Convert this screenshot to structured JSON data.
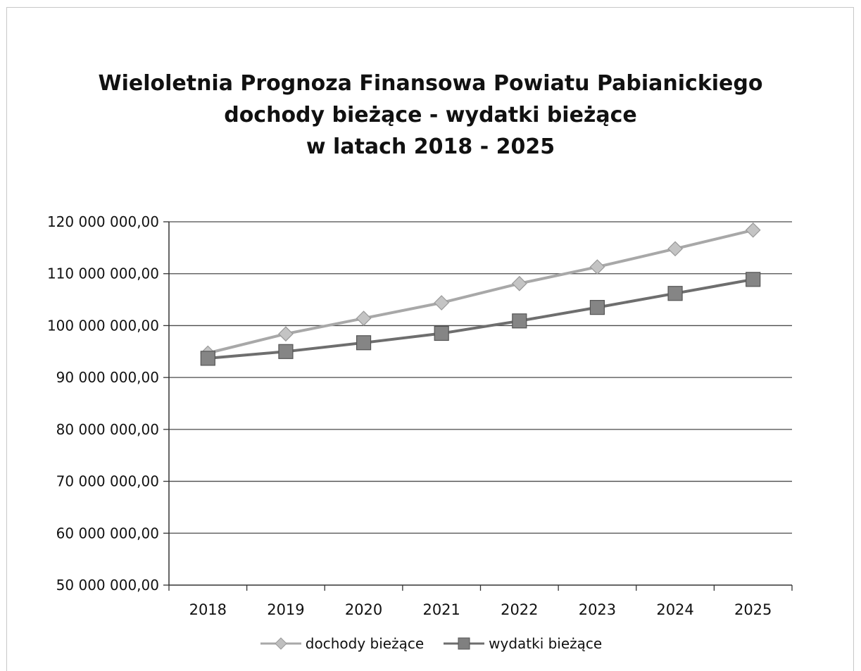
{
  "chart_data": {
    "type": "line",
    "title_lines": [
      "Wieloletnia Prognoza Finansowa Powiatu Pabianickiego",
      "dochody bieżące - wydatki bieżące",
      "w latach 2018 - 2025"
    ],
    "categories": [
      "2018",
      "2019",
      "2020",
      "2021",
      "2022",
      "2023",
      "2024",
      "2025"
    ],
    "ylim": [
      50000000,
      120000000
    ],
    "yticks": [
      50000000,
      60000000,
      70000000,
      80000000,
      90000000,
      100000000,
      110000000,
      120000000
    ],
    "ytick_labels": [
      "50 000 000,00",
      "60 000 000,00",
      "70 000 000,00",
      "80 000 000,00",
      "90 000 000,00",
      "100 000 000,00",
      "110 000 000,00",
      "120 000 000,00"
    ],
    "grid": true,
    "legend_position": "bottom",
    "series": [
      {
        "name": "dochody bieżące",
        "marker": "diamond",
        "color": "#a8a8a8",
        "values": [
          94700000,
          98400000,
          101400000,
          104400000,
          108100000,
          111300000,
          114800000,
          118400000
        ]
      },
      {
        "name": "wydatki bieżące",
        "marker": "square",
        "color": "#6e6e6e",
        "values": [
          93700000,
          95000000,
          96700000,
          98500000,
          100900000,
          103500000,
          106200000,
          108900000
        ]
      }
    ]
  }
}
